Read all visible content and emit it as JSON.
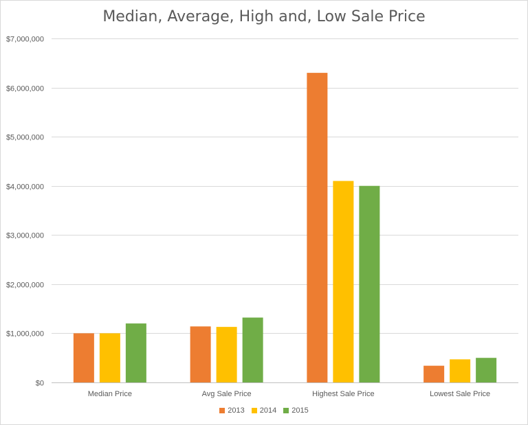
{
  "chart_data": {
    "type": "bar",
    "title": "Median, Average, High and, Low Sale Price",
    "categories": [
      "Median Price",
      "Avg Sale Price",
      "Highest Sale Price",
      "Lowest Sale Price"
    ],
    "series": [
      {
        "name": "2013",
        "color": "#ED7D31",
        "values": [
          1000000,
          1140000,
          6300000,
          340000
        ]
      },
      {
        "name": "2014",
        "color": "#FFC000",
        "values": [
          1000000,
          1130000,
          4100000,
          470000
        ]
      },
      {
        "name": "2015",
        "color": "#70AD47",
        "values": [
          1200000,
          1320000,
          4000000,
          500000
        ]
      }
    ],
    "ylim": [
      0,
      7000000
    ],
    "yticks": [
      "$0",
      "$1,000,000",
      "$2,000,000",
      "$3,000,000",
      "$4,000,000",
      "$5,000,000",
      "$6,000,000",
      "$7,000,000"
    ],
    "grid": true,
    "legend_position": "bottom"
  }
}
